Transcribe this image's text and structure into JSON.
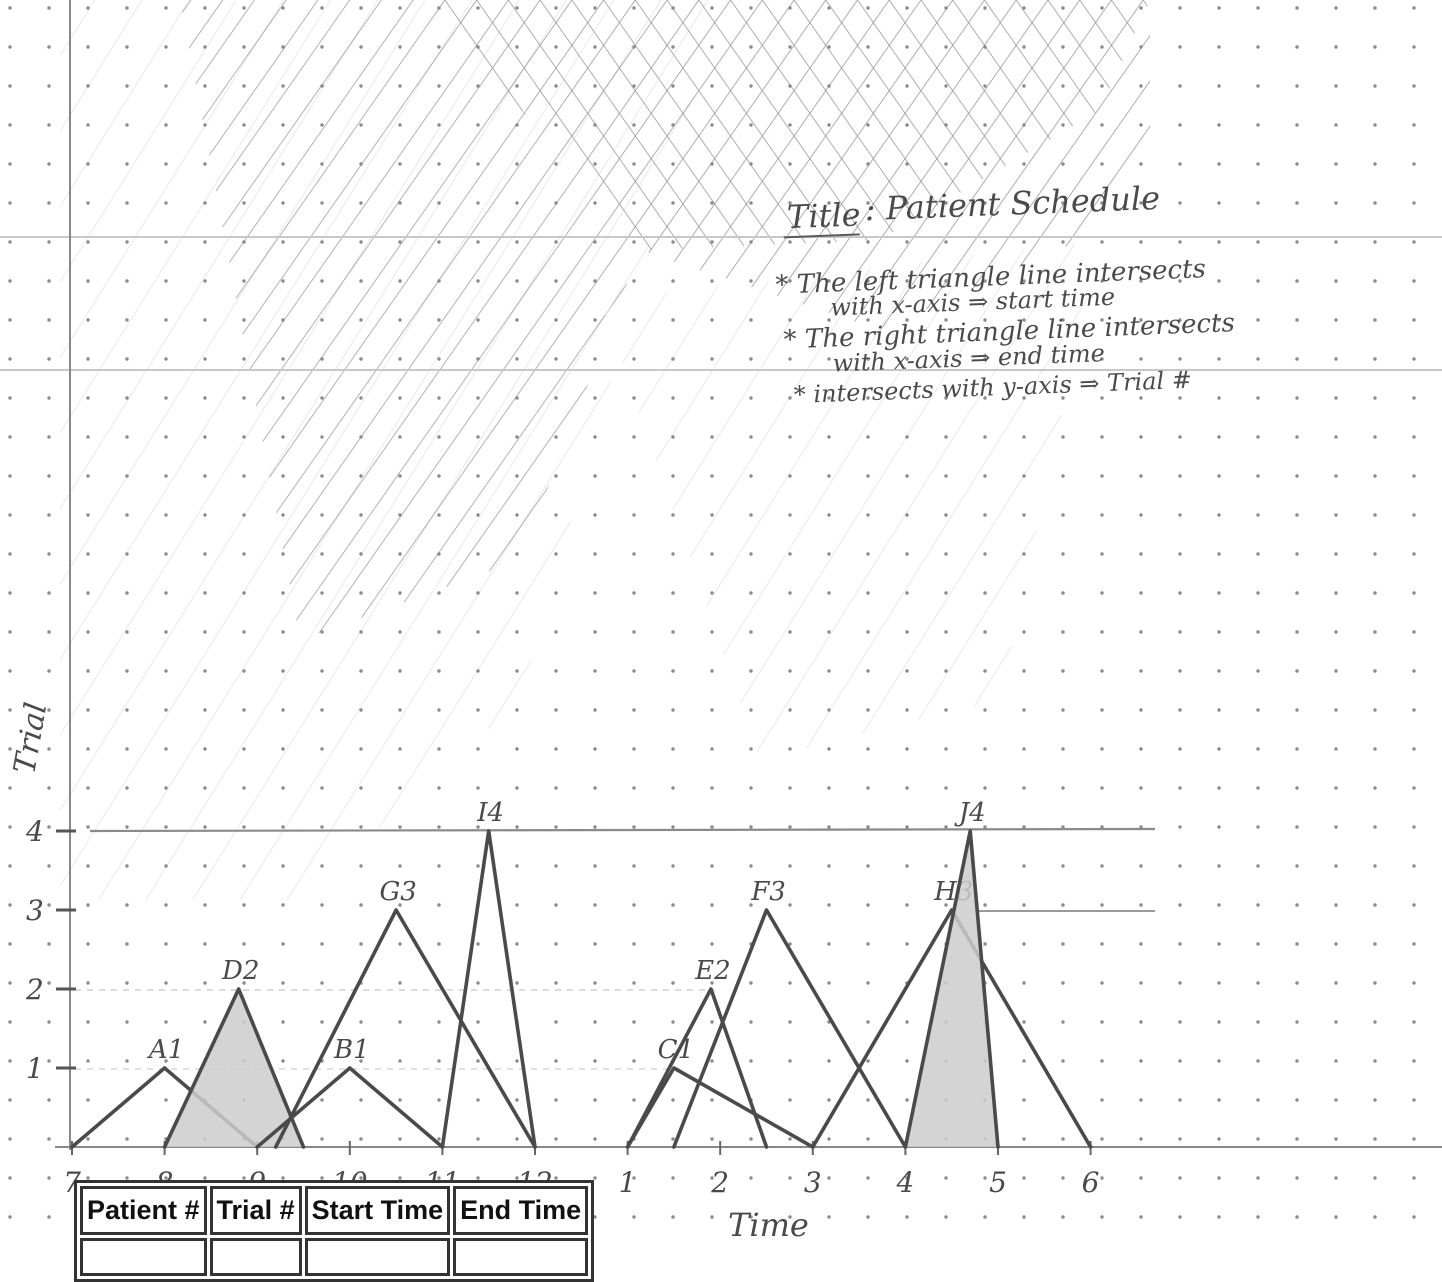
{
  "notes": {
    "title_label": "Title",
    "title_text": ": Patient Schedule",
    "line1a": "* The left triangle line intersects",
    "line1b": "with x-axis ⇒ start time",
    "line2a": "* The right triangle line intersects",
    "line2b": "with x-axis ⇒ end time",
    "line3": "* intersects with y-axis ⇒ Trial #"
  },
  "axes": {
    "y_label": "Trial",
    "x_label": "Time",
    "y_ticks": [
      "1",
      "2",
      "3",
      "4"
    ],
    "x_ticks": [
      {
        "label": "7",
        "t": 7
      },
      {
        "label": "8",
        "t": 8
      },
      {
        "label": "9",
        "t": 9
      },
      {
        "label": "10",
        "t": 10
      },
      {
        "label": "11",
        "t": 11
      },
      {
        "label": "12",
        "t": 12
      },
      {
        "label": "1",
        "t": 13
      },
      {
        "label": "2",
        "t": 14
      },
      {
        "label": "3",
        "t": 15
      },
      {
        "label": "4",
        "t": 16
      },
      {
        "label": "5",
        "t": 17
      },
      {
        "label": "6",
        "t": 18
      }
    ]
  },
  "triangles": [
    {
      "label": "A1",
      "start": 7.0,
      "peak": 8.0,
      "end": 9.0,
      "trial": 1,
      "shaded": false
    },
    {
      "label": "D2",
      "start": 8.0,
      "peak": 8.8,
      "end": 9.5,
      "trial": 2,
      "shaded": true
    },
    {
      "label": "B1",
      "start": 9.0,
      "peak": 10.0,
      "end": 11.0,
      "trial": 1,
      "shaded": false
    },
    {
      "label": "G3",
      "start": 9.2,
      "peak": 10.5,
      "end": 12.0,
      "trial": 3,
      "shaded": false
    },
    {
      "label": "I4",
      "start": 11.0,
      "peak": 11.5,
      "end": 12.0,
      "trial": 4,
      "shaded": false
    },
    {
      "label": "C1",
      "start": 13.0,
      "peak": 13.5,
      "end": 15.0,
      "trial": 1,
      "shaded": false
    },
    {
      "label": "E2",
      "start": 13.0,
      "peak": 13.9,
      "end": 14.5,
      "trial": 2,
      "shaded": false
    },
    {
      "label": "F3",
      "start": 13.5,
      "peak": 14.5,
      "end": 16.0,
      "trial": 3,
      "shaded": false
    },
    {
      "label": "H3",
      "start": 15.0,
      "peak": 16.5,
      "end": 18.0,
      "trial": 3,
      "shaded": false
    },
    {
      "label": "J4",
      "start": 16.0,
      "peak": 16.7,
      "end": 17.0,
      "trial": 4,
      "shaded": true
    }
  ],
  "table": {
    "headers": [
      "Patient #",
      "Trial #",
      "Start Time",
      "End Time"
    ]
  },
  "colors": {
    "ink": "#4a4a4a",
    "shade": "#cccccc",
    "dot": "#8a8a8a",
    "hatch": "#9a9a9a"
  }
}
